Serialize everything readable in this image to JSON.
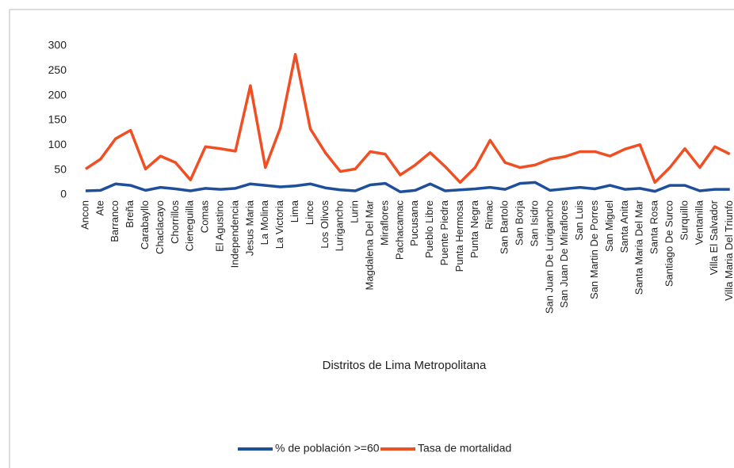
{
  "chart_data": {
    "type": "line",
    "xlabel": "Distritos de Lima Metropolitana",
    "categories": [
      "Ancon",
      "Ate",
      "Barranco",
      "Breña",
      "Carabayllo",
      "Chaclacayo",
      "Chorrillos",
      "Cieneguilla",
      "Comas",
      "El Agustino",
      "Independencia",
      "Jesus Maria",
      "La Molina",
      "La Victoria",
      "Lima",
      "Lince",
      "Los Olivos",
      "Lurigancho",
      "Lurin",
      "Magdalena Del Mar",
      "Miraflores",
      "Pachacamac",
      "Pucusana",
      "Pueblo Libre",
      "Puente Piedra",
      "Punta Hermosa",
      "Punta Negra",
      "Rimac",
      "San Bartolo",
      "San Borja",
      "San Isidro",
      "San Juan De Lurigancho",
      "San Juan De Miraflores",
      "San Luis",
      "San Martin De Porres",
      "San Miguel",
      "Santa Anita",
      "Santa Maria Del Mar",
      "Santa Rosa",
      "Santiago De Surco",
      "Surquillo",
      "Ventanilla",
      "Villa El Salvador",
      "Villa Maria Del Triunfo"
    ],
    "series": [
      {
        "name": "% de población >=60",
        "color": "#1f4e9a",
        "values": [
          8,
          9,
          22,
          19,
          9,
          15,
          12,
          8,
          13,
          11,
          13,
          22,
          19,
          16,
          18,
          22,
          14,
          10,
          8,
          20,
          23,
          6,
          9,
          22,
          8,
          10,
          12,
          15,
          11,
          23,
          25,
          9,
          12,
          15,
          12,
          19,
          11,
          13,
          7,
          19,
          19,
          8,
          11,
          11
        ]
      },
      {
        "name": "Tasa de mortalidad",
        "color": "#f04e23",
        "values": [
          52,
          72,
          113,
          130,
          52,
          78,
          65,
          30,
          97,
          93,
          88,
          220,
          55,
          135,
          283,
          133,
          85,
          47,
          52,
          87,
          82,
          40,
          60,
          85,
          57,
          25,
          55,
          110,
          65,
          55,
          60,
          72,
          77,
          87,
          87,
          78,
          92,
          101,
          25,
          55,
          93,
          55,
          97,
          82
        ]
      }
    ],
    "ylim": [
      0,
      300
    ],
    "yticks": [
      0,
      50,
      100,
      150,
      200,
      250,
      300
    ],
    "grid": false,
    "legend": "bottom"
  }
}
